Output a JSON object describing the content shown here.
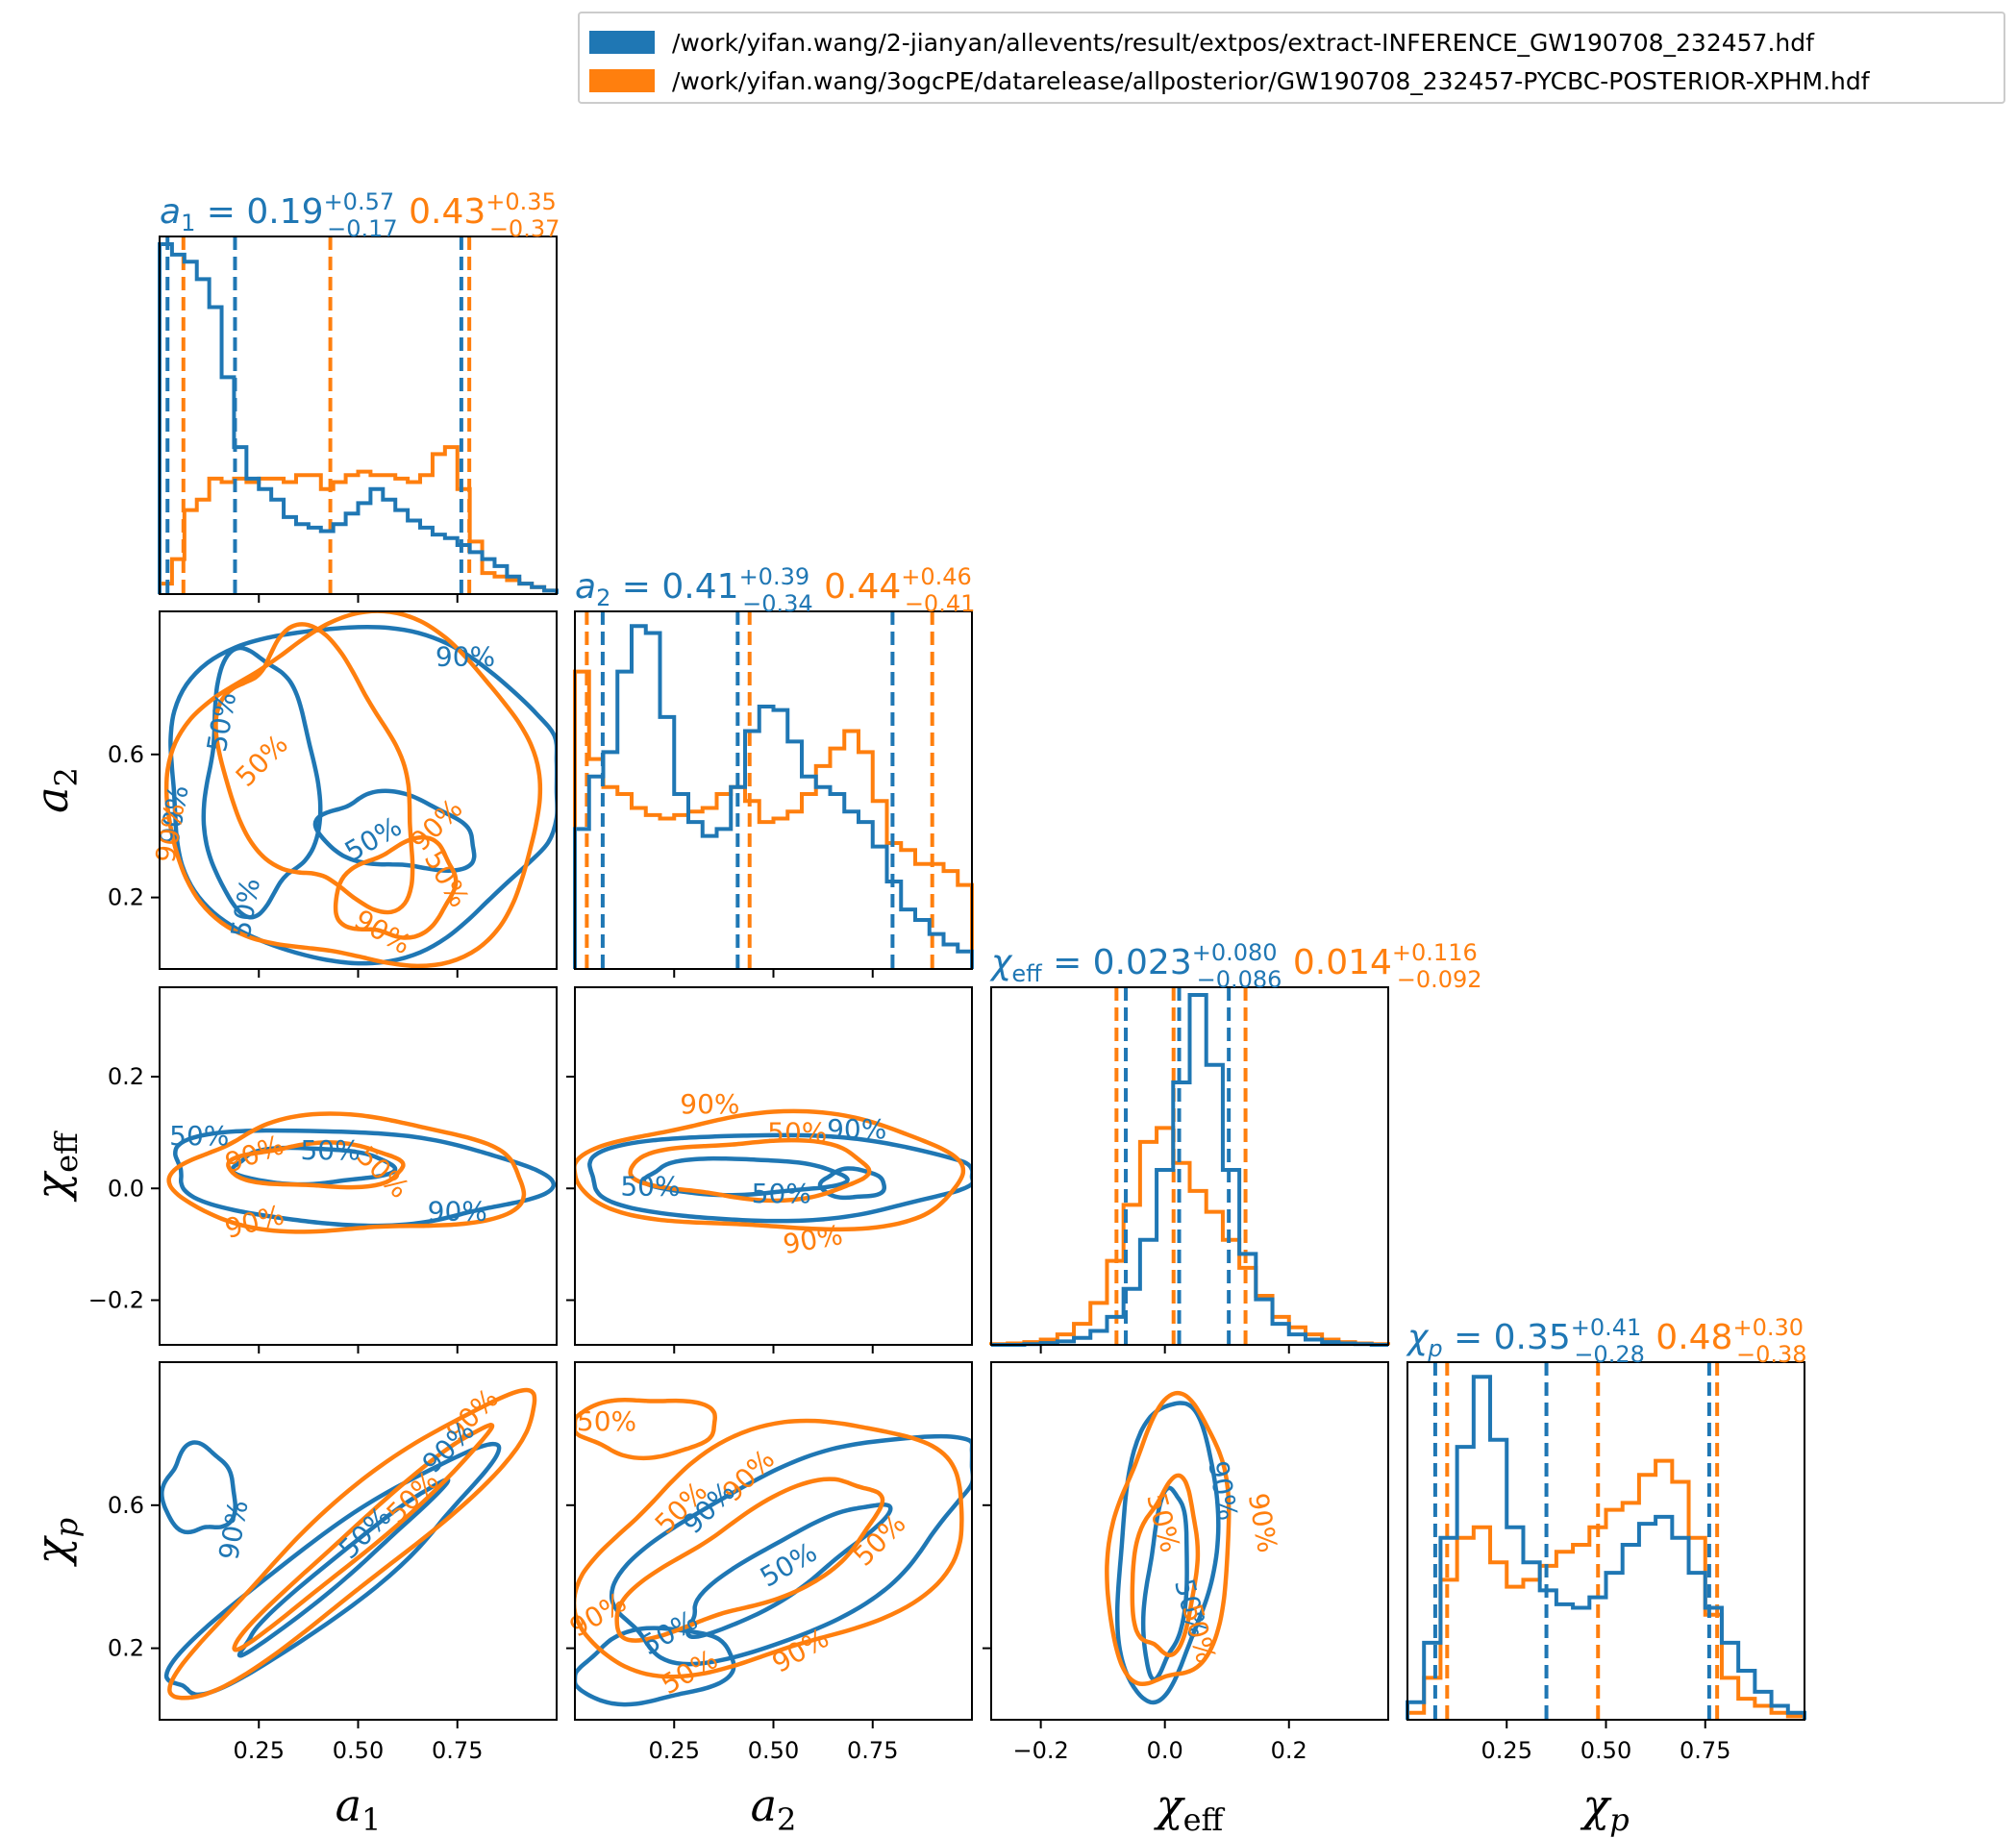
{
  "colors": {
    "blue": "#1f77b4",
    "orange": "#ff7f0e"
  },
  "legend": [
    {
      "label": "/work/yifan.wang/2-jianyan/allevents/result/extpos/extract-INFERENCE_GW190708_232457.hdf",
      "color": "#1f77b4"
    },
    {
      "label": "/work/yifan.wang/3ogcPE/datarelease/allposterior/GW190708_232457-PYCBC-POSTERIOR-XPHM.hdf",
      "color": "#ff7f0e"
    }
  ],
  "chart_data": {
    "type": "corner",
    "parameters": [
      {
        "key": "a1",
        "label": "a1",
        "range": [
          0.0,
          1.0
        ],
        "ticks": [
          "0.25",
          "0.50",
          "0.75"
        ],
        "tick_values": [
          0.25,
          0.5,
          0.75
        ],
        "blue": {
          "sym": "a1",
          "median": "0.19",
          "plus": "+0.57",
          "minus": "−0.17",
          "lines": [
            0.02,
            0.19,
            0.76
          ]
        },
        "orange": {
          "median": "0.43",
          "plus": "+0.35",
          "minus": "−0.37",
          "lines": [
            0.06,
            0.43,
            0.78
          ]
        }
      },
      {
        "key": "a2",
        "label": "a2",
        "range": [
          0.0,
          1.0
        ],
        "ticks": [
          "0.25",
          "0.50",
          "0.75"
        ],
        "tick_values": [
          0.25,
          0.5,
          0.75
        ],
        "yticks": [
          "0.2",
          "0.6"
        ],
        "ytick_values": [
          0.2,
          0.6
        ],
        "blue": {
          "sym": "a2",
          "median": "0.41",
          "plus": "+0.39",
          "minus": "−0.34",
          "lines": [
            0.07,
            0.41,
            0.8
          ]
        },
        "orange": {
          "median": "0.44",
          "plus": "+0.46",
          "minus": "−0.41",
          "lines": [
            0.03,
            0.44,
            0.9
          ]
        }
      },
      {
        "key": "chi_eff",
        "label": "χeff",
        "range": [
          -0.28,
          0.36
        ],
        "ticks": [
          "−0.2",
          "0.0",
          "0.2"
        ],
        "tick_values": [
          -0.2,
          0.0,
          0.2
        ],
        "yticks": [
          "−0.2",
          "0.0",
          "0.2"
        ],
        "ytick_values": [
          -0.2,
          0.0,
          0.2
        ],
        "blue": {
          "median": "0.023",
          "plus": "+0.080",
          "minus": "−0.086",
          "lines": [
            -0.063,
            0.023,
            0.103
          ]
        },
        "orange": {
          "median": "0.014",
          "plus": "+0.116",
          "minus": "−0.092",
          "lines": [
            -0.078,
            0.014,
            0.13
          ]
        }
      },
      {
        "key": "chi_p",
        "label": "χp",
        "range": [
          0.0,
          1.0
        ],
        "ticks": [
          "0.25",
          "0.50",
          "0.75"
        ],
        "tick_values": [
          0.25,
          0.5,
          0.75
        ],
        "yticks": [
          "0.2",
          "0.6"
        ],
        "ytick_values": [
          0.2,
          0.6
        ],
        "blue": {
          "median": "0.35",
          "plus": "+0.41",
          "minus": "−0.28",
          "lines": [
            0.07,
            0.35,
            0.76
          ]
        },
        "orange": {
          "median": "0.48",
          "plus": "+0.30",
          "minus": "−0.38",
          "lines": [
            0.1,
            0.48,
            0.78
          ]
        }
      }
    ],
    "histograms": {
      "a1": {
        "blue": [
          1.0,
          0.97,
          0.95,
          0.9,
          0.82,
          0.62,
          0.42,
          0.33,
          0.3,
          0.27,
          0.22,
          0.2,
          0.19,
          0.18,
          0.2,
          0.23,
          0.26,
          0.3,
          0.27,
          0.24,
          0.21,
          0.19,
          0.17,
          0.16,
          0.14,
          0.12,
          0.1,
          0.08,
          0.05,
          0.03,
          0.02,
          0.01
        ],
        "orange": [
          0.03,
          0.1,
          0.24,
          0.27,
          0.33,
          0.32,
          0.33,
          0.32,
          0.33,
          0.33,
          0.32,
          0.34,
          0.34,
          0.3,
          0.32,
          0.34,
          0.35,
          0.34,
          0.34,
          0.33,
          0.32,
          0.34,
          0.4,
          0.42,
          0.3,
          0.15,
          0.06,
          0.05,
          0.04,
          0.03,
          0.02,
          0.01
        ]
      },
      "a2": {
        "blue": [
          0.4,
          0.55,
          0.62,
          0.85,
          0.98,
          0.96,
          0.72,
          0.5,
          0.42,
          0.38,
          0.4,
          0.52,
          0.68,
          0.75,
          0.74,
          0.65,
          0.55,
          0.52,
          0.5,
          0.45,
          0.42,
          0.35,
          0.25,
          0.17,
          0.14,
          0.1,
          0.07,
          0.05
        ],
        "orange": [
          0.85,
          0.6,
          0.52,
          0.5,
          0.46,
          0.44,
          0.43,
          0.44,
          0.45,
          0.46,
          0.5,
          0.52,
          0.48,
          0.42,
          0.43,
          0.45,
          0.5,
          0.58,
          0.63,
          0.68,
          0.62,
          0.48,
          0.36,
          0.34,
          0.3,
          0.3,
          0.28,
          0.24
        ]
      },
      "chi_eff": {
        "blue": [
          0.0,
          0.0,
          0.002,
          0.005,
          0.01,
          0.02,
          0.04,
          0.08,
          0.16,
          0.3,
          0.5,
          0.75,
          1.0,
          0.8,
          0.5,
          0.26,
          0.13,
          0.06,
          0.03,
          0.015,
          0.008,
          0.004,
          0.002,
          0.0
        ],
        "orange": [
          0.002,
          0.004,
          0.008,
          0.015,
          0.03,
          0.06,
          0.12,
          0.24,
          0.4,
          0.58,
          0.62,
          0.52,
          0.44,
          0.38,
          0.3,
          0.22,
          0.14,
          0.08,
          0.05,
          0.03,
          0.015,
          0.008,
          0.004,
          0.002
        ]
      },
      "chi_p": {
        "blue": [
          0.05,
          0.22,
          0.52,
          0.78,
          0.98,
          0.8,
          0.55,
          0.45,
          0.37,
          0.33,
          0.32,
          0.35,
          0.42,
          0.5,
          0.56,
          0.58,
          0.52,
          0.42,
          0.32,
          0.22,
          0.14,
          0.08,
          0.04,
          0.02
        ],
        "orange": [
          0.02,
          0.12,
          0.4,
          0.52,
          0.55,
          0.45,
          0.38,
          0.4,
          0.44,
          0.48,
          0.5,
          0.55,
          0.6,
          0.62,
          0.7,
          0.74,
          0.68,
          0.52,
          0.3,
          0.12,
          0.06,
          0.04,
          0.02,
          0.01
        ]
      }
    },
    "contours": [
      {
        "row": 1,
        "col": 0,
        "x": "a1",
        "y": "a2",
        "labels": [
          {
            "text": "90%",
            "color": "blue",
            "x": 0.77,
            "y": 0.87,
            "rot": 0
          },
          {
            "text": "50%",
            "color": "blue",
            "x": 0.16,
            "y": 0.69,
            "rot": -80
          },
          {
            "text": "50%",
            "color": "blue",
            "x": 0.54,
            "y": 0.36,
            "rot": -30
          },
          {
            "text": "50%",
            "color": "blue",
            "x": 0.22,
            "y": 0.17,
            "rot": -80
          },
          {
            "text": "90%",
            "color": "blue",
            "x": 0.04,
            "y": 0.43,
            "rot": -80
          },
          {
            "text": "50%",
            "color": "orange",
            "x": 0.26,
            "y": 0.58,
            "rot": -45
          },
          {
            "text": "90%",
            "color": "orange",
            "x": 0.7,
            "y": 0.4,
            "rot": -45
          },
          {
            "text": "50%",
            "color": "orange",
            "x": 0.72,
            "y": 0.25,
            "rot": 60
          },
          {
            "text": "90%",
            "color": "orange",
            "x": 0.56,
            "y": 0.1,
            "rot": 30
          },
          {
            "text": "90%",
            "color": "orange",
            "x": 0.03,
            "y": 0.38,
            "rot": -80
          }
        ]
      },
      {
        "row": 2,
        "col": 0,
        "x": "a1",
        "y": "chi_eff",
        "labels": [
          {
            "text": "50%",
            "color": "blue",
            "x": 0.1,
            "y": 0.58,
            "rot": 0
          },
          {
            "text": "90%",
            "color": "orange",
            "x": 0.24,
            "y": 0.53,
            "rot": -20
          },
          {
            "text": "50%",
            "color": "blue",
            "x": 0.43,
            "y": 0.54,
            "rot": 0
          },
          {
            "text": "50%",
            "color": "orange",
            "x": 0.56,
            "y": 0.48,
            "rot": 45
          },
          {
            "text": "90%",
            "color": "blue",
            "x": 0.75,
            "y": 0.37,
            "rot": 0
          },
          {
            "text": "90%",
            "color": "orange",
            "x": 0.24,
            "y": 0.34,
            "rot": -15
          }
        ]
      },
      {
        "row": 2,
        "col": 1,
        "x": "a2",
        "y": "chi_eff",
        "labels": [
          {
            "text": "90%",
            "color": "orange",
            "x": 0.34,
            "y": 0.67,
            "rot": 0
          },
          {
            "text": "50%",
            "color": "orange",
            "x": 0.56,
            "y": 0.59,
            "rot": 0
          },
          {
            "text": "90%",
            "color": "blue",
            "x": 0.71,
            "y": 0.6,
            "rot": 0
          },
          {
            "text": "50%",
            "color": "blue",
            "x": 0.19,
            "y": 0.44,
            "rot": 0
          },
          {
            "text": "50%",
            "color": "blue",
            "x": 0.52,
            "y": 0.42,
            "rot": 0
          },
          {
            "text": "90%",
            "color": "orange",
            "x": 0.6,
            "y": 0.29,
            "rot": -10
          }
        ]
      },
      {
        "row": 3,
        "col": 0,
        "x": "a1",
        "y": "chi_p",
        "labels": [
          {
            "text": "90%",
            "color": "orange",
            "x": 0.79,
            "y": 0.85,
            "rot": -45
          },
          {
            "text": "90%",
            "color": "blue",
            "x": 0.73,
            "y": 0.76,
            "rot": -45
          },
          {
            "text": "50%",
            "color": "orange",
            "x": 0.64,
            "y": 0.62,
            "rot": -45
          },
          {
            "text": "50%",
            "color": "blue",
            "x": 0.52,
            "y": 0.52,
            "rot": -45
          },
          {
            "text": "90%",
            "color": "blue",
            "x": 0.19,
            "y": 0.53,
            "rot": -80
          }
        ]
      },
      {
        "row": 3,
        "col": 1,
        "x": "a2",
        "y": "chi_p",
        "labels": [
          {
            "text": "50%",
            "color": "orange",
            "x": 0.08,
            "y": 0.83,
            "rot": 0
          },
          {
            "text": "90%",
            "color": "orange",
            "x": 0.44,
            "y": 0.68,
            "rot": -45
          },
          {
            "text": "50%",
            "color": "orange",
            "x": 0.27,
            "y": 0.59,
            "rot": -45
          },
          {
            "text": "90%",
            "color": "blue",
            "x": 0.34,
            "y": 0.59,
            "rot": -45
          },
          {
            "text": "50%",
            "color": "blue",
            "x": 0.54,
            "y": 0.43,
            "rot": -30
          },
          {
            "text": "50%",
            "color": "orange",
            "x": 0.77,
            "y": 0.5,
            "rot": -45
          },
          {
            "text": "90%",
            "color": "orange",
            "x": 0.06,
            "y": 0.29,
            "rot": -30
          },
          {
            "text": "50%",
            "color": "blue",
            "x": 0.24,
            "y": 0.24,
            "rot": -30
          },
          {
            "text": "50%",
            "color": "orange",
            "x": 0.29,
            "y": 0.13,
            "rot": -30
          },
          {
            "text": "90%",
            "color": "orange",
            "x": 0.57,
            "y": 0.19,
            "rot": -30
          }
        ]
      },
      {
        "row": 3,
        "col": 2,
        "x": "chi_eff",
        "y": "chi_p",
        "labels": [
          {
            "text": "90%",
            "color": "blue",
            "x": 0.58,
            "y": 0.64,
            "rot": 80
          },
          {
            "text": "90%",
            "color": "orange",
            "x": 0.68,
            "y": 0.55,
            "rot": 80
          },
          {
            "text": "50%",
            "color": "orange",
            "x": 0.43,
            "y": 0.55,
            "rot": 75
          },
          {
            "text": "50%",
            "color": "blue",
            "x": 0.5,
            "y": 0.31,
            "rot": 75
          },
          {
            "text": "50%",
            "color": "orange",
            "x": 0.52,
            "y": 0.24,
            "rot": 75
          }
        ]
      }
    ]
  }
}
